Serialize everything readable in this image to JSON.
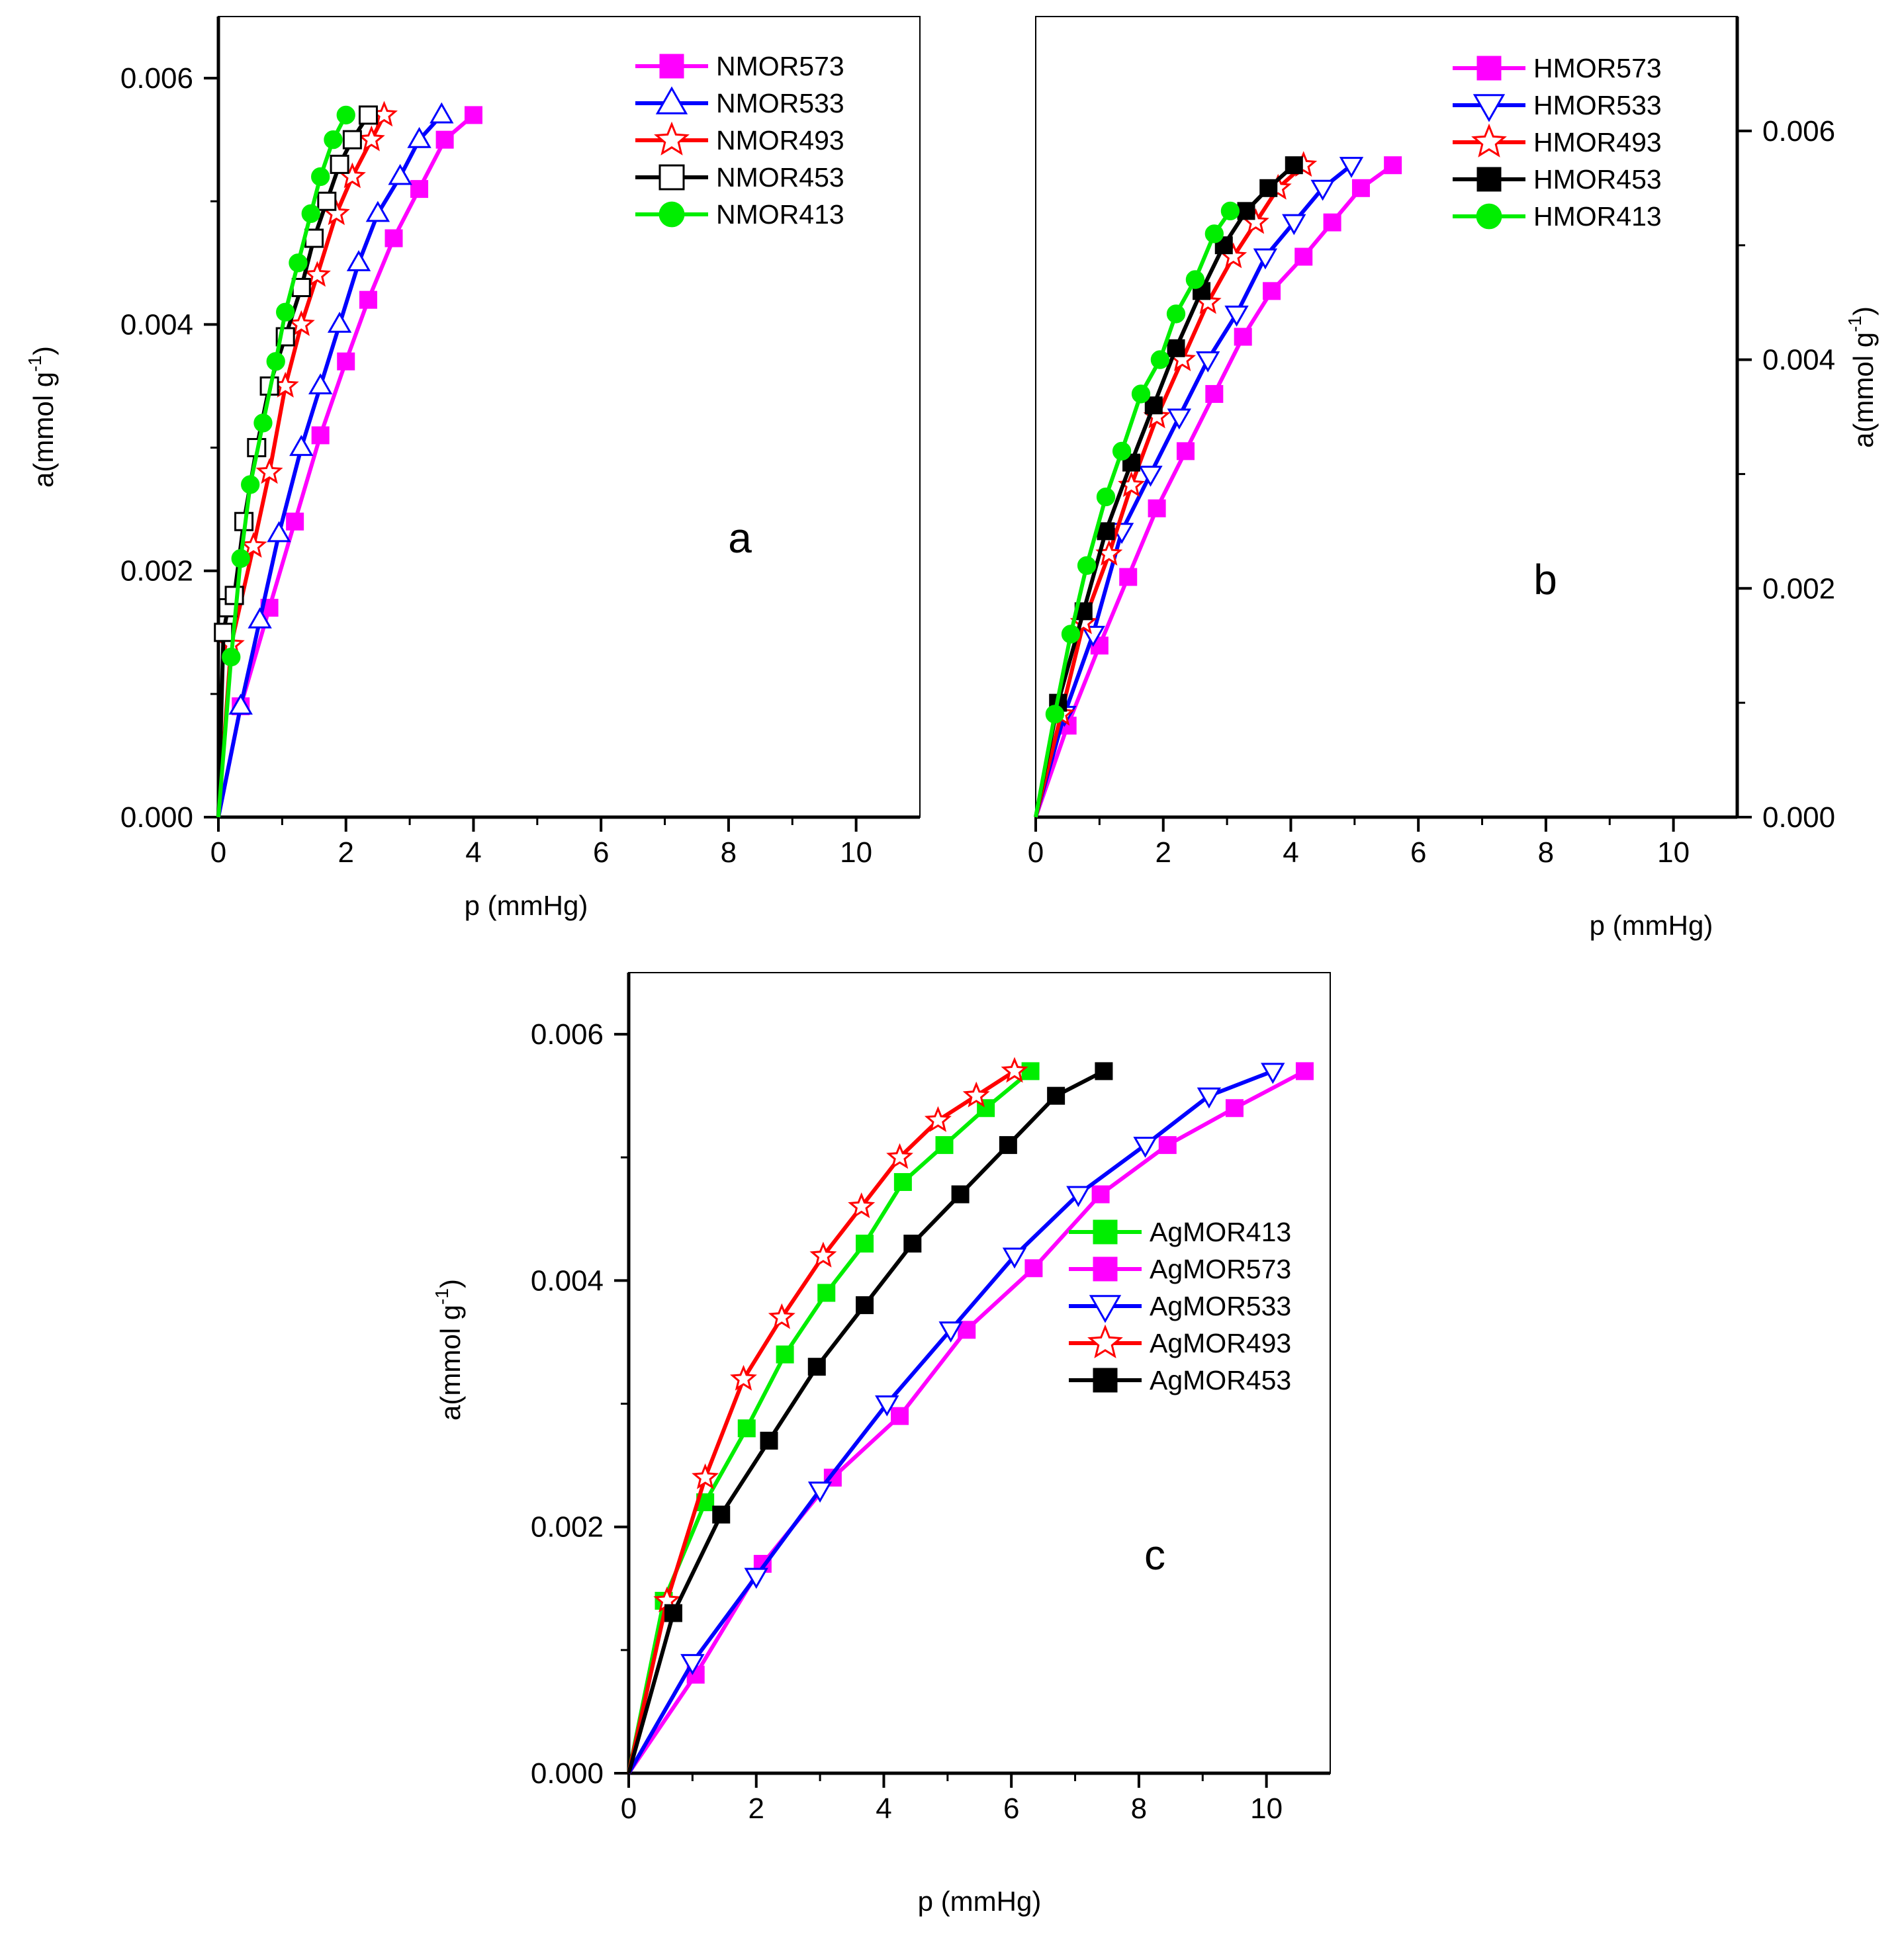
{
  "chart_data": [
    {
      "panel": "a",
      "type": "line",
      "xlabel": "p (mmHg)",
      "ylabel": "a(mmol g-1)",
      "ylabel_unit": "-1",
      "xlim": [
        0,
        11
      ],
      "ylim": [
        0,
        0.0065
      ],
      "xticks": [
        "0",
        "2",
        "4",
        "6",
        "8",
        "10"
      ],
      "yticks": [
        "0.000",
        "0.002",
        "0.004",
        "0.006"
      ],
      "y_axis_side": "left",
      "legend_position": "top-right",
      "series": [
        {
          "name": "NMOR573",
          "color": "#ff00ff",
          "marker": "square-filled",
          "x": [
            0,
            0.35,
            0.8,
            1.2,
            1.6,
            2.0,
            2.35,
            2.75,
            3.15,
            3.55,
            4.0
          ],
          "y": [
            0,
            0.0009,
            0.0017,
            0.0024,
            0.0031,
            0.0037,
            0.0042,
            0.0047,
            0.0051,
            0.0055,
            0.0057
          ]
        },
        {
          "name": "NMOR533",
          "color": "#0000ff",
          "marker": "triangle-up-open",
          "x": [
            0,
            0.35,
            0.65,
            0.95,
            1.3,
            1.6,
            1.9,
            2.2,
            2.5,
            2.85,
            3.15,
            3.5
          ],
          "y": [
            0,
            0.0009,
            0.0016,
            0.0023,
            0.003,
            0.0035,
            0.004,
            0.0045,
            0.0049,
            0.0052,
            0.0055,
            0.0057
          ]
        },
        {
          "name": "NMOR493",
          "color": "#ff0000",
          "marker": "star-open",
          "x": [
            0,
            0.2,
            0.55,
            0.8,
            1.05,
            1.3,
            1.55,
            1.85,
            2.1,
            2.4,
            2.6
          ],
          "y": [
            0,
            0.0014,
            0.0022,
            0.0028,
            0.0035,
            0.004,
            0.0044,
            0.0049,
            0.0052,
            0.0055,
            0.0057
          ]
        },
        {
          "name": "NMOR453",
          "color": "#000000",
          "marker": "square-open",
          "x": [
            0,
            0.08,
            0.15,
            0.25,
            0.4,
            0.6,
            0.8,
            1.05,
            1.3,
            1.5,
            1.7,
            1.9,
            2.1,
            2.35
          ],
          "y": [
            0,
            0.0015,
            0.0017,
            0.0018,
            0.0024,
            0.003,
            0.0035,
            0.0039,
            0.0043,
            0.0047,
            0.005,
            0.0053,
            0.0055,
            0.0057
          ]
        },
        {
          "name": "NMOR413",
          "color": "#00ee00",
          "marker": "circle-filled",
          "x": [
            0,
            0.2,
            0.35,
            0.5,
            0.7,
            0.9,
            1.05,
            1.25,
            1.45,
            1.6,
            1.8,
            2.0
          ],
          "y": [
            0,
            0.0013,
            0.0021,
            0.0027,
            0.0032,
            0.0037,
            0.0041,
            0.0045,
            0.0049,
            0.0052,
            0.0055,
            0.0057
          ]
        }
      ]
    },
    {
      "panel": "b",
      "type": "line",
      "xlabel": "p (mmHg)",
      "ylabel": "a(mmol g-1)",
      "ylabel_unit": "-1",
      "xlim": [
        0,
        11
      ],
      "ylim": [
        0,
        0.007
      ],
      "xticks": [
        "0",
        "2",
        "4",
        "6",
        "8",
        "10"
      ],
      "yticks": [
        "0.000",
        "0.002",
        "0.004",
        "0.006"
      ],
      "y_axis_side": "right",
      "legend_position": "top-right",
      "series": [
        {
          "name": "HMOR573",
          "color": "#ff00ff",
          "marker": "square-filled",
          "x": [
            0,
            0.5,
            1.0,
            1.45,
            1.9,
            2.35,
            2.8,
            3.25,
            3.7,
            4.2,
            4.65,
            5.1,
            5.6
          ],
          "y": [
            0,
            0.0008,
            0.0015,
            0.0021,
            0.0027,
            0.0032,
            0.0037,
            0.0042,
            0.0046,
            0.0049,
            0.0052,
            0.0055,
            0.0057
          ]
        },
        {
          "name": "HMOR533",
          "color": "#0000ff",
          "marker": "triangle-down-open",
          "x": [
            0,
            0.45,
            0.9,
            1.35,
            1.8,
            2.25,
            2.7,
            3.15,
            3.6,
            4.05,
            4.5,
            4.95
          ],
          "y": [
            0,
            0.0009,
            0.0016,
            0.0025,
            0.003,
            0.0035,
            0.004,
            0.0044,
            0.0049,
            0.0052,
            0.0055,
            0.0057
          ]
        },
        {
          "name": "HMOR493",
          "color": "#ff0000",
          "marker": "star-open",
          "x": [
            0,
            0.4,
            0.75,
            1.15,
            1.5,
            1.9,
            2.3,
            2.7,
            3.1,
            3.45,
            3.8,
            4.2
          ],
          "y": [
            0,
            0.0009,
            0.0017,
            0.0023,
            0.0029,
            0.0035,
            0.004,
            0.0045,
            0.0049,
            0.0052,
            0.0055,
            0.0057
          ]
        },
        {
          "name": "HMOR453",
          "color": "#000000",
          "marker": "square-filled",
          "x": [
            0,
            0.35,
            0.75,
            1.1,
            1.5,
            1.85,
            2.2,
            2.6,
            2.95,
            3.3,
            3.65,
            4.05
          ],
          "y": [
            0,
            0.001,
            0.0018,
            0.0025,
            0.0031,
            0.0036,
            0.0041,
            0.0046,
            0.005,
            0.0053,
            0.0055,
            0.0057
          ]
        },
        {
          "name": "HMOR413",
          "color": "#00ee00",
          "marker": "circle-filled",
          "x": [
            0,
            0.3,
            0.55,
            0.8,
            1.1,
            1.35,
            1.65,
            1.95,
            2.2,
            2.5,
            2.8,
            3.05
          ],
          "y": [
            0,
            0.0009,
            0.0016,
            0.0022,
            0.0028,
            0.0032,
            0.0037,
            0.004,
            0.0044,
            0.0047,
            0.0051,
            0.0053
          ]
        }
      ]
    },
    {
      "panel": "c",
      "type": "line",
      "xlabel": "p (mmHg)",
      "ylabel": "a(mmol g-1)",
      "ylabel_unit": "-1",
      "xlim": [
        0,
        11
      ],
      "ylim": [
        0,
        0.0065
      ],
      "xticks": [
        "0",
        "2",
        "4",
        "6",
        "8",
        "10"
      ],
      "yticks": [
        "0.000",
        "0.002",
        "0.004",
        "0.006"
      ],
      "y_axis_side": "left",
      "legend_position": "center-right",
      "series": [
        {
          "name": "AgMOR413",
          "color": "#00ee00",
          "marker": "square-filled",
          "x": [
            0,
            0.55,
            1.2,
            1.85,
            2.45,
            3.1,
            3.7,
            4.3,
            4.95,
            5.6,
            6.3
          ],
          "y": [
            0,
            0.0014,
            0.0022,
            0.0028,
            0.0034,
            0.0039,
            0.0043,
            0.0048,
            0.0051,
            0.0054,
            0.0057
          ]
        },
        {
          "name": "AgMOR573",
          "color": "#ff00ff",
          "marker": "square-filled",
          "x": [
            0,
            1.05,
            2.1,
            3.2,
            4.25,
            5.3,
            6.35,
            7.4,
            8.45,
            9.5,
            10.6
          ],
          "y": [
            0,
            0.0008,
            0.0017,
            0.0024,
            0.0029,
            0.0036,
            0.0041,
            0.0047,
            0.0051,
            0.0054,
            0.0057
          ]
        },
        {
          "name": "AgMOR533",
          "color": "#0000ff",
          "marker": "triangle-down-open",
          "x": [
            0,
            1.0,
            2.0,
            3.0,
            4.05,
            5.05,
            6.05,
            7.05,
            8.1,
            9.1,
            10.1
          ],
          "y": [
            0,
            0.0009,
            0.0016,
            0.0023,
            0.003,
            0.0036,
            0.0042,
            0.0047,
            0.0051,
            0.0055,
            0.0057
          ]
        },
        {
          "name": "AgMOR493",
          "color": "#ff0000",
          "marker": "star-open",
          "x": [
            0,
            0.6,
            1.2,
            1.8,
            2.4,
            3.05,
            3.65,
            4.25,
            4.85,
            5.45,
            6.05
          ],
          "y": [
            0,
            0.0014,
            0.0024,
            0.0032,
            0.0037,
            0.0042,
            0.0046,
            0.005,
            0.0053,
            0.0055,
            0.0057
          ]
        },
        {
          "name": "AgMOR453",
          "color": "#000000",
          "marker": "square-filled",
          "x": [
            0,
            0.7,
            1.45,
            2.2,
            2.95,
            3.7,
            4.45,
            5.2,
            5.95,
            6.7,
            7.45
          ],
          "y": [
            0,
            0.0013,
            0.0021,
            0.0027,
            0.0033,
            0.0038,
            0.0043,
            0.0047,
            0.0051,
            0.0055,
            0.0057
          ]
        }
      ]
    }
  ]
}
